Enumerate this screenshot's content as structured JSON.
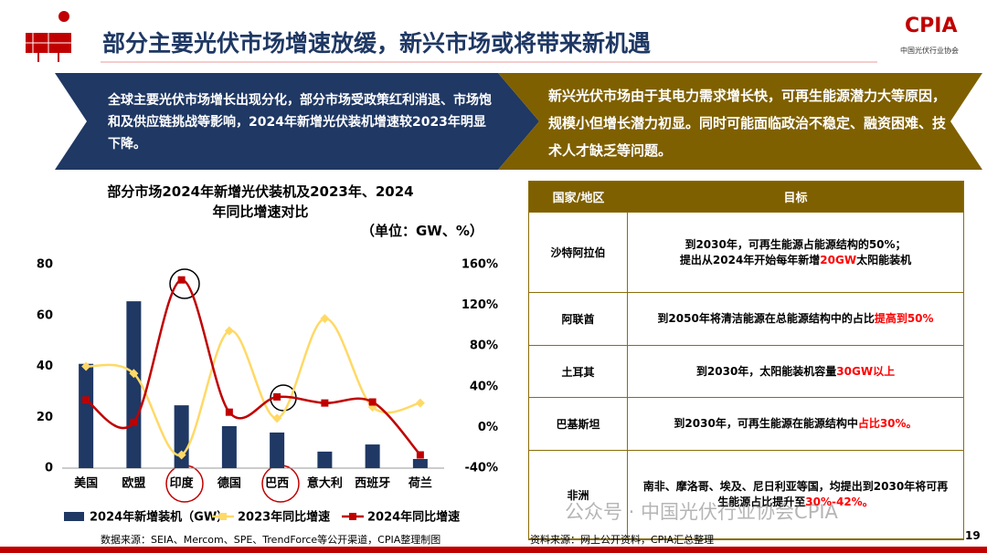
{
  "header": {
    "title": "部分主要光伏市场增速放缓，新兴市场或将带来新机遇",
    "logo": "CPIA",
    "logo_sub": "中国光伏行业协会"
  },
  "banners": [
    "全球主要光伏市场增长出现分化，部分市场受政策红利消退、市场饱和及供应链挑战等影响，2024年新增光伏装机增速较2023年明显下降。",
    "新兴光伏市场由于其电力需求增长快，可再生能源潜力大等原因，规模小但增长潜力初显。同时可能面临政治不稳定、融资困难、技术人才缺乏等问题。"
  ],
  "chart_data": {
    "type": "bar-line",
    "title": "部分市场2024年新增光伏装机及2023年、2024年同比增速对比",
    "unit": "（单位：GW、%）",
    "categories": [
      "美国",
      "欧盟",
      "印度",
      "德国",
      "巴西",
      "意大利",
      "西班牙",
      "荷兰"
    ],
    "ylim": [
      0,
      80
    ],
    "yticks": [
      0,
      20,
      40,
      60,
      80
    ],
    "y2lim": [
      -40,
      160
    ],
    "y2ticks": [
      {
        "value": -40,
        "label": "-40%"
      },
      {
        "value": 0,
        "label": "0%"
      },
      {
        "value": 40,
        "label": "40%"
      },
      {
        "value": 80,
        "label": "80%"
      },
      {
        "value": 120,
        "label": "120%"
      },
      {
        "value": 160,
        "label": "160%"
      }
    ],
    "series": [
      {
        "name": "2024年新增装机（GW）",
        "type": "bar",
        "color": "#1f3864",
        "values": [
          41,
          65.6,
          24.7,
          16.5,
          14,
          6.5,
          9.3,
          3.6
        ]
      },
      {
        "name": "2023年同比增速",
        "type": "line",
        "axis": "y2",
        "color": "#ffd966",
        "values": [
          60,
          53,
          -27,
          95,
          9,
          107,
          20,
          24
        ]
      },
      {
        "name": "2024年同比增速",
        "type": "line",
        "axis": "y2",
        "color": "#c00000",
        "values": [
          27,
          5,
          145,
          15,
          30,
          24,
          25,
          -27
        ]
      }
    ],
    "source": "数据来源：SEIA、Mercom、SPE、TrendForce等公开渠道，CPIA整理制图"
  },
  "table": {
    "columns": [
      "国家/地区",
      "目标"
    ],
    "rows": [
      [
        "沙特阿拉伯",
        [
          {
            "text": "到2030年，可再生能源占能源结构的50%；"
          },
          {
            "text": "提出从2024年开始每年新增"
          },
          {
            "text": "20GW",
            "color": "#ff0000"
          },
          {
            "text": "太阳能装机"
          }
        ]
      ],
      [
        "阿联酋",
        [
          {
            "text": "到2050年将清洁能源在总能源结构中的占比"
          },
          {
            "text": "提高到50%",
            "color": "#ff0000"
          }
        ]
      ],
      [
        "土耳其",
        [
          {
            "text": "到2030年，太阳能装机容量"
          },
          {
            "text": "30GW以上",
            "color": "#ff0000"
          }
        ]
      ],
      [
        "巴基斯坦",
        [
          {
            "text": "到2030年，可再生能源在能源结构中"
          },
          {
            "text": "占比30%。",
            "color": "#ff0000"
          }
        ]
      ],
      [
        "非洲",
        [
          {
            "text": "南非、摩洛哥、埃及、尼日利亚等国，均提出到2030年将可再生能源占比提升至"
          },
          {
            "text": "30%-42%。",
            "color": "#ff0000"
          }
        ]
      ]
    ],
    "source": "资料来源：网上公开资料，CPIA汇总整理"
  },
  "watermark": "公众号 · 中国光伏行业协会CPIA",
  "page_number": "19"
}
